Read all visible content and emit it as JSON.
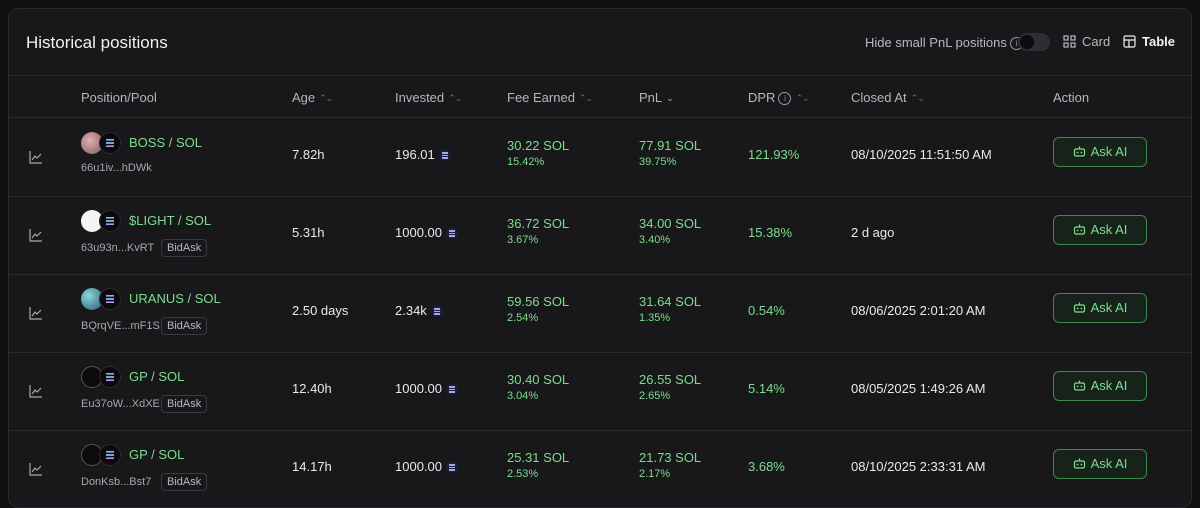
{
  "header": {
    "title": "Historical positions",
    "hide_small_label": "Hide small PnL positions",
    "hide_small_enabled": false,
    "views": [
      {
        "label": "Card",
        "active": false
      },
      {
        "label": "Table",
        "active": true
      }
    ]
  },
  "columns": {
    "position": "Position/Pool",
    "age": "Age",
    "invested": "Invested",
    "fee": "Fee Earned",
    "pnl": "PnL",
    "dpr": "DPR",
    "closed": "Closed At",
    "action": "Action"
  },
  "rows": [
    {
      "token_icon": "boss-token-icon",
      "pair": "BOSS / SOL",
      "address": "66u1iv...hDWk",
      "strategy": "",
      "age": "7.82h",
      "invested": "196.01",
      "fee": "30.22 SOL",
      "fee_pct": "15.42%",
      "pnl": "77.91 SOL",
      "pnl_pct": "39.75%",
      "dpr": "121.93%",
      "closed": "08/10/2025 11:51:50 AM",
      "action": "Ask AI"
    },
    {
      "token_icon": "light-token-icon",
      "pair": "$LIGHT / SOL",
      "address": "63u93n...KvRT",
      "strategy": "BidAsk",
      "age": "5.31h",
      "invested": "1000.00",
      "fee": "36.72 SOL",
      "fee_pct": "3.67%",
      "pnl": "34.00 SOL",
      "pnl_pct": "3.40%",
      "dpr": "15.38%",
      "closed": "2 d ago",
      "action": "Ask AI"
    },
    {
      "token_icon": "uranus-token-icon",
      "pair": "URANUS / SOL",
      "address": "BQrqVE...mF1S",
      "strategy": "BidAsk",
      "age": "2.50 days",
      "invested": "2.34k",
      "fee": "59.56 SOL",
      "fee_pct": "2.54%",
      "pnl": "31.64 SOL",
      "pnl_pct": "1.35%",
      "dpr": "0.54%",
      "closed": "08/06/2025 2:01:20 AM",
      "action": "Ask AI"
    },
    {
      "token_icon": "gp-token-icon",
      "pair": "GP / SOL",
      "address": "Eu37oW...XdXE",
      "strategy": "BidAsk",
      "age": "12.40h",
      "invested": "1000.00",
      "fee": "30.40 SOL",
      "fee_pct": "3.04%",
      "pnl": "26.55 SOL",
      "pnl_pct": "2.65%",
      "dpr": "5.14%",
      "closed": "08/05/2025 1:49:26 AM",
      "action": "Ask AI"
    },
    {
      "token_icon": "gp-token-icon",
      "pair": "GP / SOL",
      "address": "DonKsb...Bst7",
      "strategy": "BidAsk",
      "age": "14.17h",
      "invested": "1000.00",
      "fee": "25.31 SOL",
      "fee_pct": "2.53%",
      "pnl": "21.73 SOL",
      "pnl_pct": "2.17%",
      "dpr": "3.68%",
      "closed": "08/10/2025 2:33:31 AM",
      "action": "Ask AI"
    }
  ],
  "colors": {
    "accent_green": "#7fdc8e",
    "background": "#18181b",
    "border": "#2a2a2f"
  }
}
